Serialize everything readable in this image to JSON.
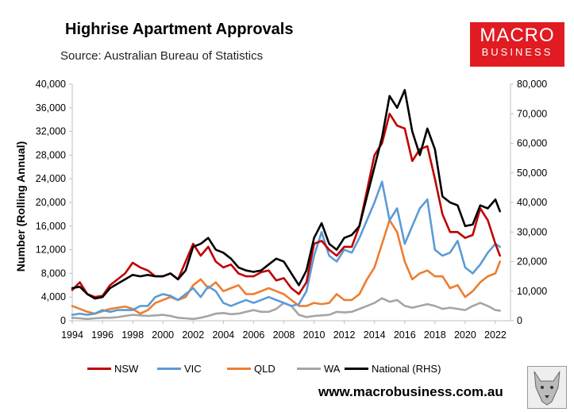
{
  "header": {
    "title": "Highrise Apartment Approvals",
    "source": "Source: Australian Bureau of Statistics"
  },
  "logo": {
    "line1": "MACRO",
    "line2": "BUSINESS"
  },
  "footer": {
    "url": "www.macrobusiness.com.au"
  },
  "colors": {
    "NSW": "#c00000",
    "VIC": "#5b9bd5",
    "QLD": "#ed7d31",
    "WA": "#a5a5a5",
    "National": "#000000"
  },
  "chart_data": {
    "type": "line",
    "ylabel": "Number (Rolling Annual)",
    "ylim": [
      0,
      40000
    ],
    "y2lim": [
      0,
      80000
    ],
    "xlim": [
      1994,
      2023
    ],
    "yticks": [
      "0",
      "4,000",
      "8,000",
      "12,000",
      "16,000",
      "20,000",
      "24,000",
      "28,000",
      "32,000",
      "36,000",
      "40,000"
    ],
    "y2ticks": [
      "0",
      "10,000",
      "20,000",
      "30,000",
      "40,000",
      "50,000",
      "60,000",
      "70,000",
      "80,000"
    ],
    "xticks": [
      "1994",
      "1996",
      "1998",
      "2000",
      "2002",
      "2004",
      "2006",
      "2008",
      "2010",
      "2012",
      "2014",
      "2016",
      "2018",
      "2020",
      "2022"
    ],
    "legend_position": "bottom",
    "series": [
      {
        "name": "NSW",
        "axis": "left",
        "x": [
          1994,
          1994.5,
          1995,
          1995.5,
          1996,
          1996.5,
          1997,
          1997.5,
          1998,
          1998.5,
          1999,
          1999.5,
          2000,
          2000.5,
          2001,
          2001.5,
          2002,
          2002.5,
          2003,
          2003.5,
          2004,
          2004.5,
          2005,
          2005.5,
          2006,
          2006.5,
          2007,
          2007.5,
          2008,
          2008.5,
          2009,
          2009.5,
          2010,
          2010.5,
          2011,
          2011.5,
          2012,
          2012.5,
          2013,
          2013.5,
          2014,
          2014.5,
          2015,
          2015.5,
          2016,
          2016.5,
          2017,
          2017.5,
          2018,
          2018.5,
          2019,
          2019.5,
          2020,
          2020.5,
          2021,
          2021.5,
          2022,
          2022.3
        ],
        "values": [
          5200,
          6500,
          4500,
          4000,
          4200,
          6000,
          7000,
          8000,
          9800,
          9000,
          8500,
          7500,
          7500,
          8000,
          7000,
          10000,
          13000,
          11000,
          12500,
          10000,
          9000,
          9500,
          8000,
          7500,
          7500,
          8200,
          8500,
          6800,
          7200,
          5500,
          4500,
          6500,
          13000,
          13500,
          12000,
          11000,
          12500,
          12500,
          16000,
          22000,
          28000,
          30000,
          35000,
          33000,
          32500,
          27000,
          29000,
          29500,
          24000,
          18000,
          15000,
          15000,
          14000,
          14500,
          19000,
          17000,
          13000,
          11000
        ]
      },
      {
        "name": "VIC",
        "axis": "left",
        "x": [
          1994,
          1994.5,
          1995,
          1995.5,
          1996,
          1996.5,
          1997,
          1997.5,
          1998,
          1998.5,
          1999,
          1999.5,
          2000,
          2000.5,
          2001,
          2001.5,
          2002,
          2002.5,
          2003,
          2003.5,
          2004,
          2004.5,
          2005,
          2005.5,
          2006,
          2006.5,
          2007,
          2007.5,
          2008,
          2008.5,
          2009,
          2009.5,
          2010,
          2010.5,
          2011,
          2011.5,
          2012,
          2012.5,
          2013,
          2013.5,
          2014,
          2014.5,
          2015,
          2015.5,
          2016,
          2016.5,
          2017,
          2017.5,
          2018,
          2018.5,
          2019,
          2019.5,
          2020,
          2020.5,
          2021,
          2021.5,
          2022,
          2022.3
        ],
        "values": [
          1000,
          1200,
          1000,
          1200,
          1800,
          1500,
          1800,
          1800,
          1800,
          2500,
          2500,
          4000,
          4500,
          4200,
          3500,
          4500,
          5500,
          4000,
          5800,
          5000,
          3000,
          2500,
          3000,
          3500,
          3000,
          3500,
          4000,
          3500,
          3000,
          2500,
          2800,
          5000,
          11000,
          15000,
          11000,
          10000,
          12000,
          11500,
          14000,
          17000,
          20000,
          23500,
          17000,
          19000,
          13000,
          16000,
          19000,
          20500,
          12000,
          11000,
          11500,
          13500,
          9000,
          8000,
          9500,
          11500,
          13000,
          12500
        ]
      },
      {
        "name": "QLD",
        "axis": "left",
        "x": [
          1994,
          1994.5,
          1995,
          1995.5,
          1996,
          1996.5,
          1997,
          1997.5,
          1998,
          1998.5,
          1999,
          1999.5,
          2000,
          2000.5,
          2001,
          2001.5,
          2002,
          2002.5,
          2003,
          2003.5,
          2004,
          2004.5,
          2005,
          2005.5,
          2006,
          2006.5,
          2007,
          2007.5,
          2008,
          2008.5,
          2009,
          2009.5,
          2010,
          2010.5,
          2011,
          2011.5,
          2012,
          2012.5,
          2013,
          2013.5,
          2014,
          2014.5,
          2015,
          2015.5,
          2016,
          2016.5,
          2017,
          2017.5,
          2018,
          2018.5,
          2019,
          2019.5,
          2020,
          2020.5,
          2021,
          2021.5,
          2022,
          2022.3
        ],
        "values": [
          2500,
          2000,
          1500,
          1200,
          1600,
          2000,
          2200,
          2400,
          2000,
          1200,
          1800,
          3000,
          3500,
          4000,
          3500,
          4000,
          6000,
          7000,
          5500,
          6500,
          5000,
          5500,
          6000,
          4500,
          4500,
          5000,
          5500,
          5000,
          4500,
          3500,
          2500,
          2500,
          3000,
          2800,
          3000,
          4500,
          3500,
          3500,
          4500,
          7000,
          9000,
          13000,
          17000,
          15000,
          10000,
          7000,
          8000,
          8500,
          7500,
          7500,
          5500,
          6000,
          4000,
          5000,
          6500,
          7500,
          8000,
          10000
        ]
      },
      {
        "name": "WA",
        "axis": "left",
        "x": [
          1994,
          1994.5,
          1995,
          1995.5,
          1996,
          1996.5,
          1997,
          1997.5,
          1998,
          1998.5,
          1999,
          1999.5,
          2000,
          2000.5,
          2001,
          2001.5,
          2002,
          2002.5,
          2003,
          2003.5,
          2004,
          2004.5,
          2005,
          2005.5,
          2006,
          2006.5,
          2007,
          2007.5,
          2008,
          2008.5,
          2009,
          2009.5,
          2010,
          2010.5,
          2011,
          2011.5,
          2012,
          2012.5,
          2013,
          2013.5,
          2014,
          2014.5,
          2015,
          2015.5,
          2016,
          2016.5,
          2017,
          2017.5,
          2018,
          2018.5,
          2019,
          2019.5,
          2020,
          2020.5,
          2021,
          2021.5,
          2022,
          2022.3
        ],
        "values": [
          500,
          400,
          300,
          400,
          500,
          500,
          600,
          800,
          1000,
          900,
          800,
          900,
          1000,
          800,
          500,
          400,
          300,
          500,
          800,
          1200,
          1300,
          1100,
          1200,
          1500,
          1800,
          1500,
          1500,
          2000,
          3000,
          2500,
          1000,
          600,
          800,
          900,
          1000,
          1500,
          1400,
          1500,
          2000,
          2500,
          3000,
          3800,
          3200,
          3500,
          2500,
          2200,
          2500,
          2800,
          2500,
          2000,
          2200,
          2000,
          1800,
          2500,
          3000,
          2500,
          1800,
          1700
        ]
      },
      {
        "name": "National (RHS)",
        "axis": "right",
        "x": [
          1994,
          1994.5,
          1995,
          1995.5,
          1996,
          1996.5,
          1997,
          1997.5,
          1998,
          1998.5,
          1999,
          1999.5,
          2000,
          2000.5,
          2001,
          2001.5,
          2002,
          2002.5,
          2003,
          2003.5,
          2004,
          2004.5,
          2005,
          2005.5,
          2006,
          2006.5,
          2007,
          2007.5,
          2008,
          2008.5,
          2009,
          2009.5,
          2010,
          2010.5,
          2011,
          2011.5,
          2012,
          2012.5,
          2013,
          2013.5,
          2014,
          2014.5,
          2015,
          2015.5,
          2016,
          2016.5,
          2017,
          2017.5,
          2018,
          2018.5,
          2019,
          2019.5,
          2020,
          2020.5,
          2021,
          2021.5,
          2022,
          2022.3
        ],
        "values": [
          11000,
          11500,
          9000,
          7500,
          8000,
          11000,
          12500,
          14000,
          15500,
          15000,
          15500,
          15000,
          15000,
          16000,
          14000,
          17000,
          25000,
          26000,
          28000,
          24000,
          23000,
          21000,
          18000,
          17000,
          16500,
          17000,
          19000,
          21000,
          20000,
          16000,
          12000,
          17000,
          28000,
          33000,
          26000,
          24000,
          28000,
          29000,
          32000,
          42000,
          52000,
          62000,
          76000,
          72000,
          78000,
          64000,
          56000,
          65000,
          58000,
          42000,
          40000,
          39000,
          32000,
          32500,
          39000,
          38000,
          41000,
          37000
        ]
      }
    ]
  }
}
